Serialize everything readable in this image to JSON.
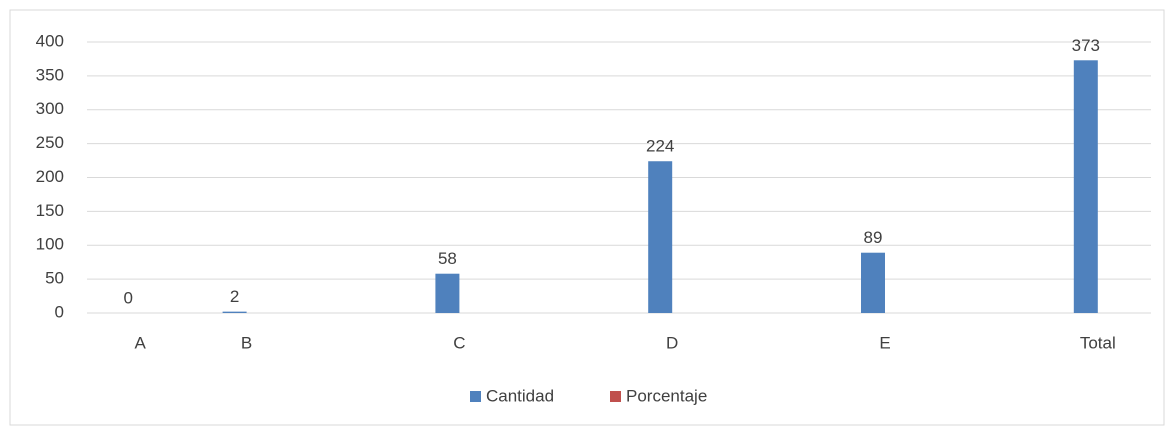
{
  "chart_data": {
    "type": "bar",
    "categories": [
      "A",
      "B",
      null,
      "C",
      null,
      "D",
      null,
      "E",
      null,
      "Total"
    ],
    "series": [
      {
        "name": "Cantidad",
        "color": "#4f81bd",
        "values": [
          0,
          2,
          null,
          58,
          null,
          224,
          null,
          89,
          null,
          373
        ]
      },
      {
        "name": "Porcentaje",
        "color": "#c0504d",
        "values": [
          0,
          0,
          null,
          0,
          null,
          0,
          null,
          0,
          null,
          0
        ]
      }
    ],
    "ylim": [
      0,
      400
    ],
    "yticks": [
      0,
      50,
      100,
      150,
      200,
      250,
      300,
      350,
      400
    ],
    "grid": true,
    "legend": "bottom",
    "data_labels": [
      true,
      false
    ]
  }
}
